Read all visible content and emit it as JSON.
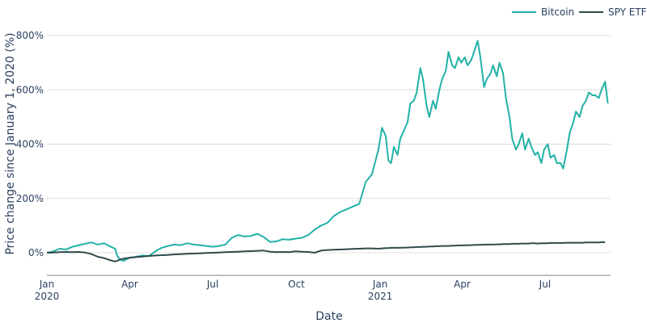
{
  "chart_data": {
    "type": "line",
    "title": "",
    "xlabel": "Date",
    "ylabel": "Price change since January 1, 2020 (%)",
    "ylim": [
      -85,
      830
    ],
    "yticks": [
      0,
      200,
      400,
      600,
      800
    ],
    "ytick_labels": [
      "0%",
      "200%",
      "400%",
      "600%",
      "800%"
    ],
    "xticks": [
      {
        "label": "Jan",
        "sub": "2020",
        "day": 0
      },
      {
        "label": "Apr",
        "sub": "",
        "day": 91
      },
      {
        "label": "Jul",
        "sub": "",
        "day": 182
      },
      {
        "label": "Oct",
        "sub": "",
        "day": 274
      },
      {
        "label": "Jan",
        "sub": "2021",
        "day": 366
      },
      {
        "label": "Apr",
        "sub": "",
        "day": 456
      },
      {
        "label": "Jul",
        "sub": "",
        "day": 547
      }
    ],
    "xrange_days": [
      0,
      619
    ],
    "grid": true,
    "legend_position": "top-right",
    "x_days": [
      0,
      7,
      14,
      21,
      28,
      35,
      42,
      49,
      56,
      63,
      70,
      75,
      77,
      80,
      84,
      91,
      98,
      105,
      112,
      119,
      126,
      133,
      140,
      147,
      154,
      161,
      168,
      175,
      182,
      189,
      196,
      203,
      210,
      217,
      224,
      231,
      238,
      245,
      252,
      259,
      266,
      273,
      280,
      287,
      294,
      301,
      308,
      315,
      322,
      329,
      336,
      343,
      350,
      357,
      364,
      368,
      372,
      375,
      378,
      381,
      385,
      388,
      392,
      396,
      399,
      403,
      406,
      410,
      413,
      417,
      420,
      424,
      427,
      431,
      434,
      438,
      441,
      445,
      448,
      452,
      455,
      459,
      462,
      466,
      469,
      473,
      476,
      480,
      483,
      487,
      490,
      494,
      497,
      501,
      504,
      508,
      511,
      515,
      518,
      522,
      525,
      529,
      532,
      536,
      539,
      543,
      546,
      550,
      553,
      557,
      560,
      564,
      567,
      571,
      574,
      578,
      581,
      585,
      588,
      592,
      595,
      599,
      602,
      606,
      609,
      613,
      616,
      619
    ],
    "series": [
      {
        "name": "Bitcoin",
        "color": "#22b2a6",
        "values": [
          0,
          5,
          15,
          12,
          22,
          28,
          33,
          38,
          30,
          35,
          22,
          15,
          -10,
          -25,
          -30,
          -18,
          -15,
          -10,
          -12,
          5,
          18,
          25,
          30,
          28,
          35,
          30,
          28,
          25,
          22,
          25,
          30,
          55,
          65,
          60,
          62,
          70,
          58,
          40,
          42,
          50,
          48,
          52,
          55,
          65,
          85,
          100,
          110,
          135,
          150,
          160,
          170,
          180,
          260,
          290,
          380,
          460,
          430,
          340,
          330,
          390,
          360,
          420,
          450,
          480,
          550,
          560,
          590,
          680,
          640,
          540,
          500,
          560,
          530,
          600,
          640,
          670,
          740,
          690,
          680,
          720,
          700,
          720,
          690,
          710,
          740,
          780,
          720,
          610,
          640,
          660,
          690,
          650,
          700,
          660,
          570,
          500,
          420,
          380,
          400,
          440,
          380,
          420,
          390,
          360,
          370,
          330,
          380,
          400,
          350,
          360,
          330,
          330,
          310,
          380,
          440,
          480,
          520,
          500,
          540,
          560,
          590,
          580,
          580,
          570,
          600,
          630,
          550
        ],
        "legend_label": "Bitcoin"
      },
      {
        "name": "SPY ETF",
        "color": "#2f4b4c",
        "values": [
          0,
          1,
          2,
          3,
          2,
          3,
          1,
          -5,
          -15,
          -20,
          -28,
          -32,
          -30,
          -25,
          -22,
          -18,
          -16,
          -14,
          -12,
          -10,
          -9,
          -8,
          -6,
          -5,
          -4,
          -3,
          -2,
          -1,
          0,
          1,
          2,
          3,
          4,
          5,
          6,
          7,
          8,
          4,
          2,
          3,
          2,
          5,
          4,
          3,
          0,
          8,
          10,
          11,
          12,
          13,
          14,
          15,
          16,
          16,
          15,
          16,
          17,
          17,
          18,
          18,
          18,
          18,
          19,
          19,
          20,
          20,
          21,
          21,
          22,
          22,
          23,
          23,
          24,
          24,
          25,
          25,
          25,
          26,
          26,
          27,
          27,
          27,
          28,
          28,
          29,
          29,
          29,
          30,
          30,
          30,
          30,
          31,
          31,
          32,
          32,
          32,
          33,
          33,
          33,
          34,
          34,
          34,
          35,
          35,
          34,
          35,
          35,
          35,
          36,
          36,
          36,
          36,
          36,
          37,
          37,
          37,
          37,
          37,
          37,
          38,
          38,
          38,
          38,
          38,
          39,
          39
        ],
        "legend_label": "SPY ETF"
      }
    ]
  },
  "legend": {
    "items": [
      {
        "label": "Bitcoin",
        "color": "#22b2a6"
      },
      {
        "label": "SPY ETF",
        "color": "#2f4b4c"
      }
    ]
  }
}
